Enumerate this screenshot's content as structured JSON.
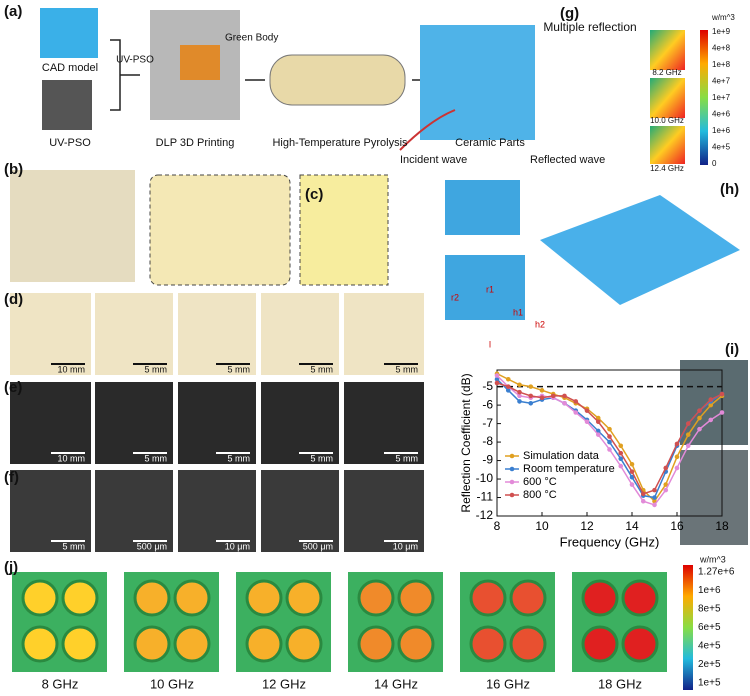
{
  "panel_labels": [
    "(a)",
    "(b)",
    "(c)",
    "(d)",
    "(e)",
    "(f)",
    "(g)",
    "(h)",
    "(i)",
    "(j)"
  ],
  "a": {
    "cad": "CAD model",
    "resin": "UV-PSO",
    "uvpso": "UV-PSO",
    "green": "Green Body",
    "step1": "DLP 3D Printing",
    "step2": "High-Temperature Pyrolysis",
    "step3": "Ceramic Parts"
  },
  "d": {
    "scales": [
      "10 mm",
      "5 mm",
      "5 mm",
      "5 mm",
      "5 mm"
    ]
  },
  "e": {
    "scales": [
      "10 mm",
      "5 mm",
      "5 mm",
      "5 mm",
      "5 mm"
    ]
  },
  "f": {
    "scales": [
      "5 mm",
      "500 μm",
      "10 μm",
      "500 μm",
      "10 μm"
    ]
  },
  "g": {
    "title": "Multiple reflection",
    "incident": "Incident wave",
    "reflected": "Reflected wave",
    "unit": "w/m^3",
    "scale": [
      "1e+9",
      "4e+8",
      "1e+8",
      "4e+7",
      "1e+7",
      "4e+6",
      "1e+6",
      "4e+5",
      "0"
    ],
    "freqs": [
      "8.2 GHz",
      "10.0 GHz",
      "12.4 GHz"
    ]
  },
  "h": {
    "dims": [
      "r2",
      "r1",
      "h1",
      "h2",
      "l"
    ]
  },
  "j": {
    "unit": "w/m^3",
    "scale": [
      "1.27e+6",
      "1e+6",
      "8e+5",
      "6e+5",
      "4e+5",
      "2e+5",
      "1e+5"
    ],
    "freqs": [
      "8 GHz",
      "10 GHz",
      "12 GHz",
      "14 GHz",
      "16 GHz",
      "18 GHz"
    ]
  },
  "chart_data": {
    "type": "line",
    "xlabel": "Frequency (GHz)",
    "ylabel": "Reflection Coefficient (dB)",
    "x": [
      8,
      8.5,
      9,
      9.5,
      10,
      10.5,
      11,
      11.5,
      12,
      12.5,
      13,
      13.5,
      14,
      14.5,
      15,
      15.5,
      16,
      16.5,
      17,
      17.5,
      18
    ],
    "series": [
      {
        "name": "Simulation data",
        "color": "#e0a020",
        "values": [
          -4.3,
          -4.6,
          -4.9,
          -5.0,
          -5.2,
          -5.4,
          -5.6,
          -5.9,
          -6.2,
          -6.7,
          -7.3,
          -8.2,
          -9.2,
          -10.6,
          -11.2,
          -10.3,
          -8.8,
          -7.6,
          -6.7,
          -6.0,
          -5.5
        ]
      },
      {
        "name": "Room temperature",
        "color": "#3a7fd0",
        "values": [
          -4.6,
          -5.2,
          -5.8,
          -5.9,
          -5.7,
          -5.6,
          -5.9,
          -6.3,
          -6.8,
          -7.4,
          -8.0,
          -8.9,
          -9.9,
          -10.9,
          -11.0,
          -9.6,
          -8.2,
          -7.0,
          -6.3,
          -5.8,
          -5.4
        ]
      },
      {
        "name": "600 °C",
        "color": "#e28ad8",
        "values": [
          -4.4,
          -5.0,
          -5.5,
          -5.6,
          -5.5,
          -5.6,
          -5.9,
          -6.4,
          -6.9,
          -7.6,
          -8.4,
          -9.3,
          -10.3,
          -11.2,
          -11.4,
          -10.6,
          -9.4,
          -8.2,
          -7.3,
          -6.8,
          -6.4
        ]
      },
      {
        "name": "800 °C",
        "color": "#d05050",
        "values": [
          -4.8,
          -5.0,
          -5.3,
          -5.5,
          -5.6,
          -5.5,
          -5.5,
          -5.8,
          -6.3,
          -6.9,
          -7.7,
          -8.6,
          -9.6,
          -10.8,
          -10.6,
          -9.4,
          -8.1,
          -7.0,
          -6.3,
          -5.7,
          -5.4
        ]
      }
    ],
    "xlim": [
      8,
      18
    ],
    "xticks": [
      8,
      10,
      12,
      14,
      16,
      18
    ],
    "ylim": [
      -12,
      -4.1
    ],
    "yticks": [
      -12,
      -11,
      -10,
      -9,
      -8,
      -7,
      -6,
      -5
    ],
    "reference_line": -5,
    "legend": "lower left"
  }
}
